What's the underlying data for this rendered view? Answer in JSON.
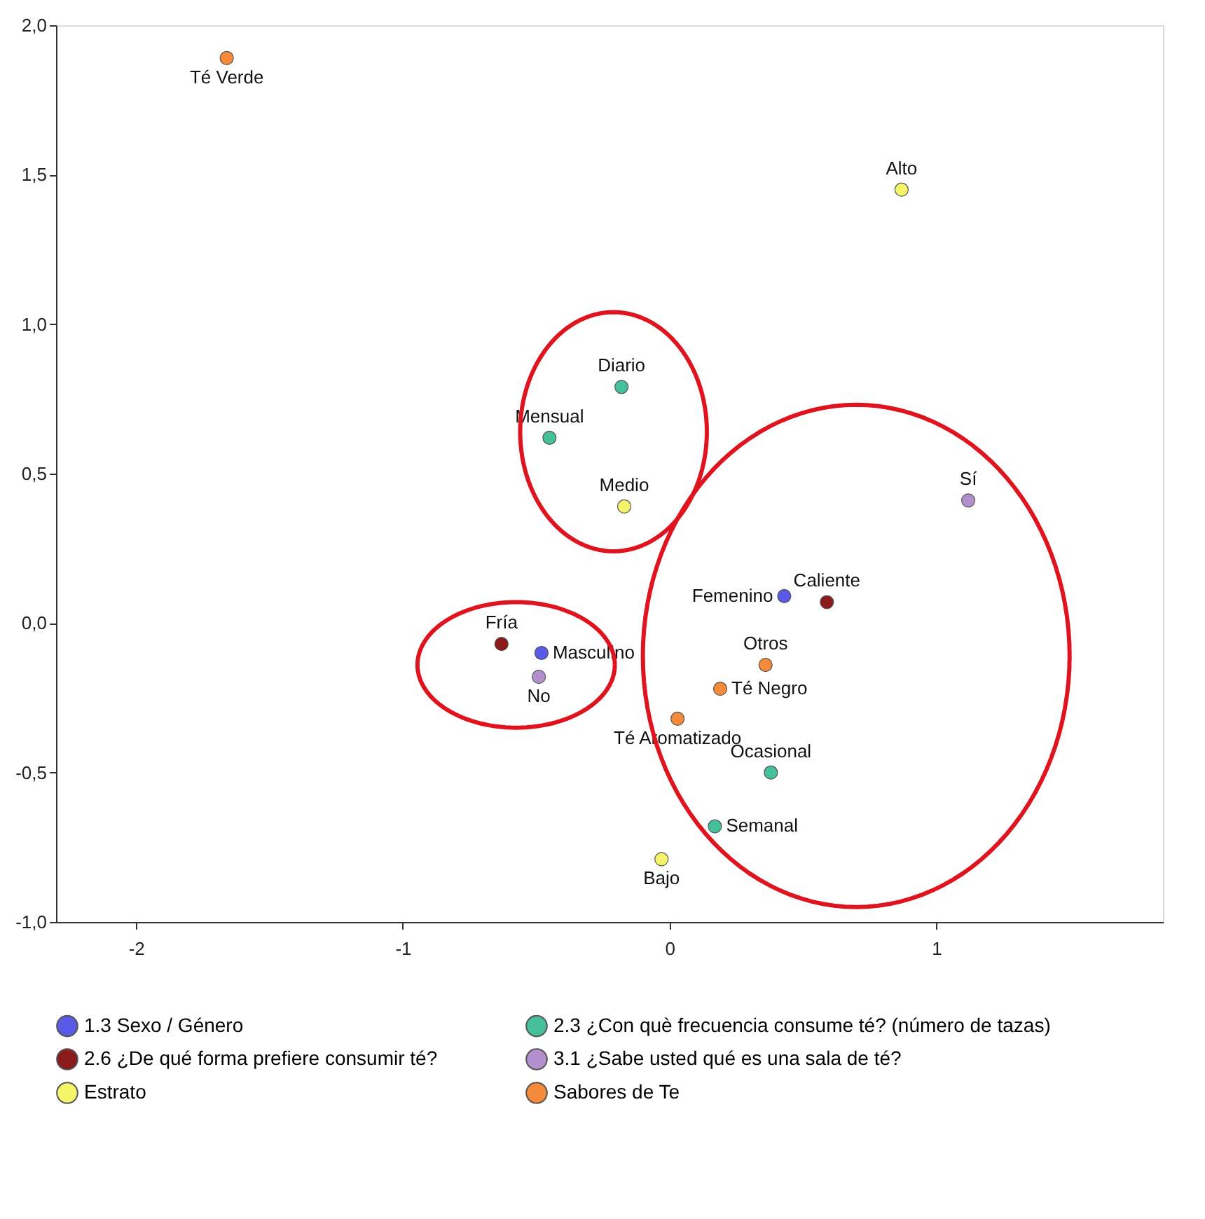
{
  "chart_data": {
    "type": "scatter",
    "series": [
      {
        "name": "1.3 Sexo / Género",
        "color": "#5a5ae8",
        "x": [
          0.43,
          -0.48
        ],
        "values": [
          0.09,
          -0.1
        ]
      },
      {
        "name": "2.3 ¿Con què frecuencia consume té? (número de tazas)",
        "color": "#45c09a",
        "x": [
          -0.18,
          -0.45,
          0.38,
          0.17
        ],
        "values": [
          0.79,
          0.62,
          -0.5,
          -0.68
        ]
      },
      {
        "name": "2.6 ¿De qué forma prefiere consumir té?",
        "color": "#8b1a1a",
        "x": [
          0.59,
          -0.63
        ],
        "values": [
          0.07,
          -0.07
        ]
      },
      {
        "name": "3.1 ¿Sabe usted qué es una sala de té?",
        "color": "#b48fce",
        "x": [
          1.12,
          -0.49
        ],
        "values": [
          0.41,
          -0.18
        ]
      },
      {
        "name": "Estrato",
        "color": "#f5f56a",
        "x": [
          0.87,
          -0.17,
          -0.03
        ],
        "values": [
          1.45,
          0.39,
          -0.79
        ]
      },
      {
        "name": "Sabores de Te",
        "color": "#f58a3a",
        "x": [
          -1.66,
          0.36,
          0.19,
          0.03
        ],
        "values": [
          1.89,
          -0.14,
          -0.22,
          -0.32
        ]
      }
    ],
    "annotations": [
      {
        "text": "Femenino",
        "x": 0.43,
        "y": 0.09
      },
      {
        "text": "Masculino",
        "x": -0.48,
        "y": -0.1
      },
      {
        "text": "Diario",
        "x": -0.18,
        "y": 0.79
      },
      {
        "text": "Mensual",
        "x": -0.45,
        "y": 0.62
      },
      {
        "text": "Ocasional",
        "x": 0.38,
        "y": -0.5
      },
      {
        "text": "Semanal",
        "x": 0.17,
        "y": -0.68
      },
      {
        "text": "Caliente",
        "x": 0.59,
        "y": 0.07
      },
      {
        "text": "Fría",
        "x": -0.63,
        "y": -0.07
      },
      {
        "text": "Sí",
        "x": 1.12,
        "y": 0.41
      },
      {
        "text": "No",
        "x": -0.49,
        "y": -0.18
      },
      {
        "text": "Alto",
        "x": 0.87,
        "y": 1.45
      },
      {
        "text": "Medio",
        "x": -0.17,
        "y": 0.39
      },
      {
        "text": "Bajo",
        "x": -0.03,
        "y": -0.79
      },
      {
        "text": "Té Verde",
        "x": -1.66,
        "y": 1.89
      },
      {
        "text": "Otros",
        "x": 0.36,
        "y": -0.14
      },
      {
        "text": "Té Negro",
        "x": 0.19,
        "y": -0.22
      },
      {
        "text": "Té Aromatizado",
        "x": 0.03,
        "y": -0.32
      }
    ],
    "xlim": [
      -2.3,
      1.85
    ],
    "ylim": [
      -1.0,
      2.0
    ],
    "xticks": [
      -2,
      -1,
      0,
      1
    ],
    "yticks": [
      {
        "value": -1.0,
        "label": "-1,0"
      },
      {
        "value": -0.5,
        "label": "-0,5"
      },
      {
        "value": 0.0,
        "label": "0,0"
      },
      {
        "value": 0.5,
        "label": "0,5"
      },
      {
        "value": 1.0,
        "label": "1,0"
      },
      {
        "value": 1.5,
        "label": "1,5"
      },
      {
        "value": 2.0,
        "label": "2,0"
      }
    ],
    "grid": false,
    "legend": "bottom",
    "marker": "circle"
  }
}
